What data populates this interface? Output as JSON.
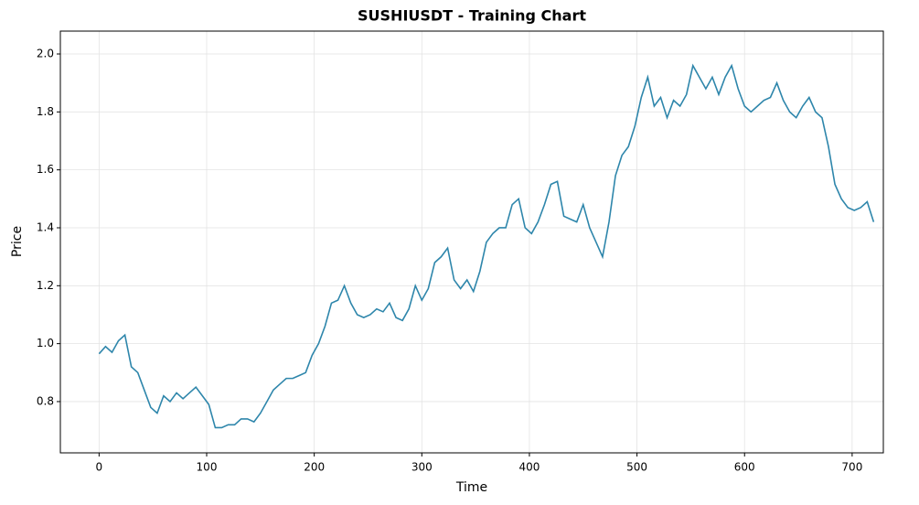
{
  "chart_data": {
    "type": "line",
    "title": "SUSHIUSDT - Training Chart",
    "x_label": "Time",
    "y_label": "Price",
    "x": [
      0,
      6,
      12,
      18,
      24,
      30,
      36,
      42,
      48,
      54,
      60,
      66,
      72,
      78,
      84,
      90,
      96,
      102,
      108,
      114,
      120,
      126,
      132,
      138,
      144,
      150,
      156,
      162,
      168,
      174,
      180,
      186,
      192,
      198,
      204,
      210,
      216,
      222,
      228,
      234,
      240,
      246,
      252,
      258,
      264,
      270,
      276,
      282,
      288,
      294,
      300,
      306,
      312,
      318,
      324,
      330,
      336,
      342,
      348,
      354,
      360,
      366,
      372,
      378,
      384,
      390,
      396,
      402,
      408,
      414,
      420,
      426,
      432,
      438,
      444,
      450,
      456,
      462,
      468,
      474,
      480,
      486,
      492,
      498,
      504,
      510,
      516,
      522,
      528,
      534,
      540,
      546,
      552,
      558,
      564,
      570,
      576,
      582,
      588,
      594,
      600,
      606,
      612,
      618,
      624,
      630,
      636,
      642,
      648,
      654,
      660,
      666,
      672,
      678,
      684,
      690,
      696,
      702,
      708,
      714,
      720
    ],
    "series": [
      {
        "name": "Price",
        "color": "#2e86ab",
        "values": [
          0.965,
          0.99,
          0.97,
          1.01,
          1.03,
          0.92,
          0.9,
          0.84,
          0.78,
          0.76,
          0.82,
          0.8,
          0.83,
          0.81,
          0.83,
          0.85,
          0.82,
          0.79,
          0.71,
          0.71,
          0.72,
          0.72,
          0.74,
          0.74,
          0.73,
          0.76,
          0.8,
          0.84,
          0.86,
          0.88,
          0.88,
          0.89,
          0.9,
          0.96,
          1.0,
          1.06,
          1.14,
          1.15,
          1.2,
          1.14,
          1.1,
          1.09,
          1.1,
          1.12,
          1.11,
          1.14,
          1.09,
          1.08,
          1.12,
          1.2,
          1.15,
          1.19,
          1.28,
          1.3,
          1.33,
          1.22,
          1.19,
          1.22,
          1.18,
          1.25,
          1.35,
          1.38,
          1.4,
          1.4,
          1.48,
          1.5,
          1.4,
          1.38,
          1.42,
          1.48,
          1.55,
          1.56,
          1.44,
          1.43,
          1.42,
          1.48,
          1.4,
          1.35,
          1.3,
          1.42,
          1.58,
          1.65,
          1.68,
          1.75,
          1.85,
          1.92,
          1.82,
          1.85,
          1.78,
          1.84,
          1.82,
          1.86,
          1.96,
          1.92,
          1.88,
          1.92,
          1.86,
          1.92,
          1.96,
          1.88,
          1.82,
          1.8,
          1.82,
          1.84,
          1.85,
          1.9,
          1.84,
          1.8,
          1.78,
          1.82,
          1.85,
          1.8,
          1.78,
          1.68,
          1.55,
          1.5,
          1.47,
          1.46,
          1.47,
          1.49,
          1.42
        ]
      }
    ],
    "xlim": [
      -36,
      729
    ],
    "ylim": [
      0.623,
      2.079
    ],
    "xticks": [
      0,
      100,
      200,
      300,
      400,
      500,
      600,
      700
    ],
    "yticks": [
      0.8,
      {
        "value": 1,
        "label": "1.0"
      },
      1.2,
      1.4,
      1.6,
      1.8,
      {
        "value": 2,
        "label": "2.0"
      }
    ],
    "grid": true
  }
}
